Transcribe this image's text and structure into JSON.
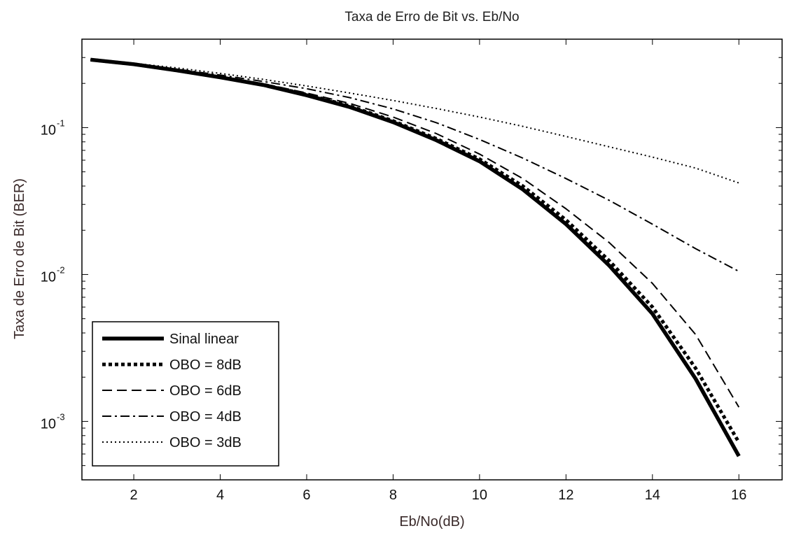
{
  "chart_data": {
    "type": "line",
    "title": "Taxa de Erro de Bit vs. Eb/No",
    "xlabel": "Eb/No(dB)",
    "ylabel": "Taxa de Erro de Bit (BER)",
    "xlim": [
      0.8,
      17
    ],
    "ylim": [
      0.0004,
      0.4
    ],
    "yscale": "log",
    "grid": false,
    "legend_position": "bottom-left",
    "x_ticks": [
      2,
      4,
      6,
      8,
      10,
      12,
      14,
      16
    ],
    "y_ticks": [
      {
        "base": "10",
        "exp": "-1",
        "value": 0.1
      },
      {
        "base": "10",
        "exp": "-2",
        "value": 0.01
      },
      {
        "base": "10",
        "exp": "-3",
        "value": 0.001
      }
    ],
    "x": [
      1,
      2,
      3,
      4,
      5,
      6,
      7,
      8,
      9,
      10,
      11,
      12,
      13,
      14,
      15,
      16
    ],
    "series": [
      {
        "name": "Sinal linear",
        "style": "solid",
        "width": 5.5,
        "values": [
          0.29,
          0.27,
          0.245,
          0.22,
          0.195,
          0.166,
          0.138,
          0.109,
          0.082,
          0.059,
          0.038,
          0.022,
          0.0115,
          0.0054,
          0.00195,
          0.00058
        ]
      },
      {
        "name": "OBO = 8dB",
        "style": "dots-thick",
        "width": 5,
        "values": [
          0.29,
          0.27,
          0.245,
          0.22,
          0.196,
          0.168,
          0.14,
          0.111,
          0.084,
          0.061,
          0.04,
          0.0235,
          0.0124,
          0.006,
          0.0023,
          0.00072
        ]
      },
      {
        "name": "OBO = 6dB",
        "style": "dashed",
        "width": 2,
        "values": [
          0.29,
          0.27,
          0.246,
          0.222,
          0.199,
          0.172,
          0.146,
          0.118,
          0.091,
          0.066,
          0.045,
          0.028,
          0.0165,
          0.0087,
          0.0039,
          0.00125
        ]
      },
      {
        "name": "OBO = 4dB",
        "style": "dashdot",
        "width": 2,
        "values": [
          0.29,
          0.272,
          0.25,
          0.228,
          0.206,
          0.184,
          0.16,
          0.134,
          0.108,
          0.083,
          0.062,
          0.045,
          0.032,
          0.022,
          0.015,
          0.0105
        ]
      },
      {
        "name": "OBO = 3dB",
        "style": "dotted",
        "width": 2,
        "values": [
          0.29,
          0.274,
          0.255,
          0.234,
          0.213,
          0.192,
          0.172,
          0.153,
          0.135,
          0.118,
          0.102,
          0.087,
          0.074,
          0.063,
          0.053,
          0.042
        ]
      }
    ]
  }
}
